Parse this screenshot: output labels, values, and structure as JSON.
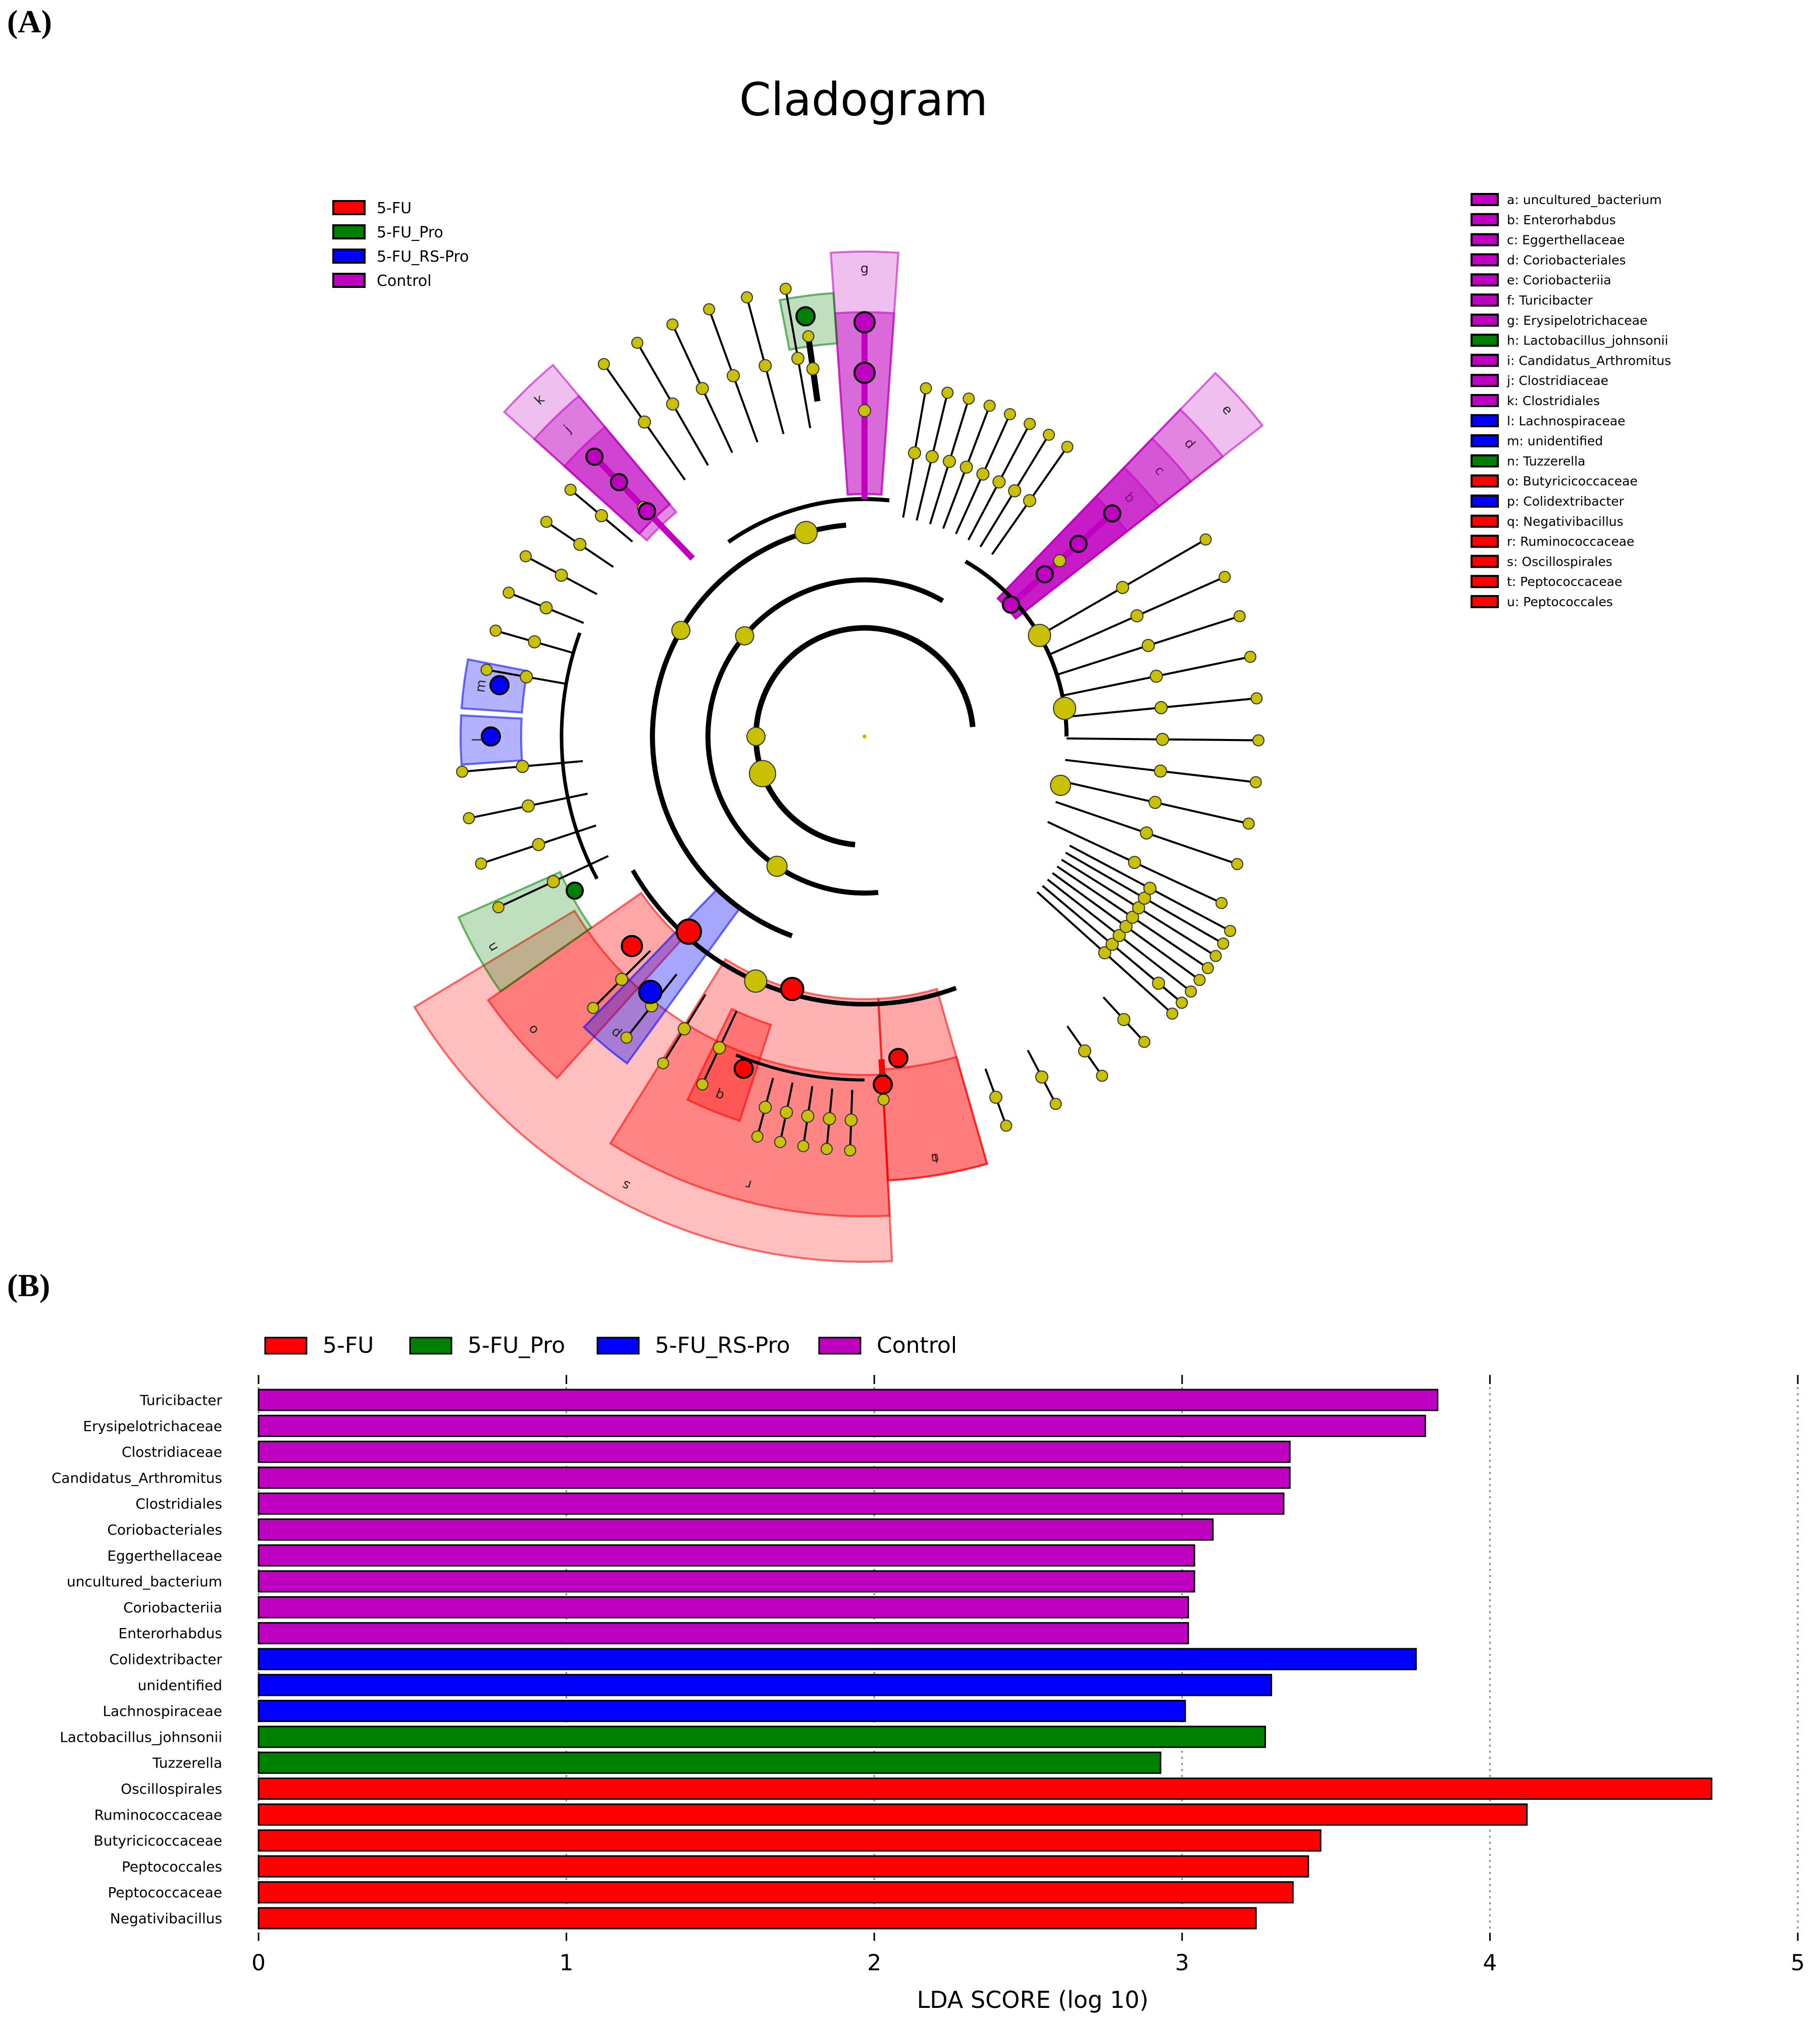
{
  "panel_a_label": "(A)",
  "panel_b_label": "(B)",
  "colors": {
    "5-FU": "#ff0000",
    "5-FU_Pro": "#008000",
    "5-FU_RS-Pro": "#0000ff",
    "Control": "#c000c0",
    "neutral_node": "#c8c000"
  },
  "chart_data": [
    {
      "type": "cladogram",
      "title": "Cladogram",
      "group_legend": [
        {
          "label": "5-FU",
          "color": "#ff0000"
        },
        {
          "label": "5-FU_Pro",
          "color": "#008000"
        },
        {
          "label": "5-FU_RS-Pro",
          "color": "#0000ff"
        },
        {
          "label": "Control",
          "color": "#c000c0"
        }
      ],
      "taxa_legend": [
        {
          "key": "a",
          "label": "a: uncultured_bacterium",
          "group": "Control"
        },
        {
          "key": "b",
          "label": "b: Enterorhabdus",
          "group": "Control"
        },
        {
          "key": "c",
          "label": "c: Eggerthellaceae",
          "group": "Control"
        },
        {
          "key": "d",
          "label": "d: Coriobacteriales",
          "group": "Control"
        },
        {
          "key": "e",
          "label": "e: Coriobacteriia",
          "group": "Control"
        },
        {
          "key": "f",
          "label": "f: Turicibacter",
          "group": "Control"
        },
        {
          "key": "g",
          "label": "g: Erysipelotrichaceae",
          "group": "Control"
        },
        {
          "key": "h",
          "label": "h: Lactobacillus_johnsonii",
          "group": "5-FU_Pro"
        },
        {
          "key": "i",
          "label": "i: Candidatus_Arthromitus",
          "group": "Control"
        },
        {
          "key": "j",
          "label": "j: Clostridiaceae",
          "group": "Control"
        },
        {
          "key": "k",
          "label": "k: Clostridiales",
          "group": "Control"
        },
        {
          "key": "l",
          "label": "l: Lachnospiraceae",
          "group": "5-FU_RS-Pro"
        },
        {
          "key": "m",
          "label": "m: unidentified",
          "group": "5-FU_RS-Pro"
        },
        {
          "key": "n",
          "label": "n: Tuzzerella",
          "group": "5-FU_Pro"
        },
        {
          "key": "o",
          "label": "o: Butyricicoccaceae",
          "group": "5-FU"
        },
        {
          "key": "p",
          "label": "p: Colidextribacter",
          "group": "5-FU_RS-Pro"
        },
        {
          "key": "q",
          "label": "q: Negativibacillus",
          "group": "5-FU"
        },
        {
          "key": "r",
          "label": "r: Ruminococcaceae",
          "group": "5-FU"
        },
        {
          "key": "s",
          "label": "s: Oscillospirales",
          "group": "5-FU"
        },
        {
          "key": "t",
          "label": "t: Peptococcaceae",
          "group": "5-FU"
        },
        {
          "key": "u",
          "label": "u: Peptococcales",
          "group": "5-FU"
        }
      ]
    },
    {
      "type": "bar",
      "orientation": "horizontal",
      "xlabel": "LDA SCORE (log 10)",
      "xlim": [
        0,
        5
      ],
      "xticks": [
        "0",
        "1",
        "2",
        "3",
        "4",
        "5"
      ],
      "legend": [
        {
          "label": "5-FU",
          "color": "#ff0000"
        },
        {
          "label": "5-FU_Pro",
          "color": "#008000"
        },
        {
          "label": "5-FU_RS-Pro",
          "color": "#0000ff"
        },
        {
          "label": "Control",
          "color": "#c000c0"
        }
      ],
      "bars": [
        {
          "label": "Turicibacter",
          "value": 3.83,
          "group": "Control"
        },
        {
          "label": "Erysipelotrichaceae",
          "value": 3.79,
          "group": "Control"
        },
        {
          "label": "Clostridiaceae",
          "value": 3.35,
          "group": "Control"
        },
        {
          "label": "Candidatus_Arthromitus",
          "value": 3.35,
          "group": "Control"
        },
        {
          "label": "Clostridiales",
          "value": 3.33,
          "group": "Control"
        },
        {
          "label": "Coriobacteriales",
          "value": 3.1,
          "group": "Control"
        },
        {
          "label": "Eggerthellaceae",
          "value": 3.04,
          "group": "Control"
        },
        {
          "label": "uncultured_bacterium",
          "value": 3.04,
          "group": "Control"
        },
        {
          "label": "Coriobacteriia",
          "value": 3.02,
          "group": "Control"
        },
        {
          "label": "Enterorhabdus",
          "value": 3.02,
          "group": "Control"
        },
        {
          "label": "Colidextribacter",
          "value": 3.76,
          "group": "5-FU_RS-Pro"
        },
        {
          "label": "unidentified",
          "value": 3.29,
          "group": "5-FU_RS-Pro"
        },
        {
          "label": "Lachnospiraceae",
          "value": 3.01,
          "group": "5-FU_RS-Pro"
        },
        {
          "label": "Lactobacillus_johnsonii",
          "value": 3.27,
          "group": "5-FU_Pro"
        },
        {
          "label": "Tuzzerella",
          "value": 2.93,
          "group": "5-FU_Pro"
        },
        {
          "label": "Oscillospirales",
          "value": 4.72,
          "group": "5-FU"
        },
        {
          "label": "Ruminococcaceae",
          "value": 4.12,
          "group": "5-FU"
        },
        {
          "label": "Butyricicoccaceae",
          "value": 3.45,
          "group": "5-FU"
        },
        {
          "label": "Peptococcales",
          "value": 3.41,
          "group": "5-FU"
        },
        {
          "label": "Peptococcaceae",
          "value": 3.36,
          "group": "5-FU"
        },
        {
          "label": "Negativibacillus",
          "value": 3.24,
          "group": "5-FU"
        }
      ]
    }
  ]
}
